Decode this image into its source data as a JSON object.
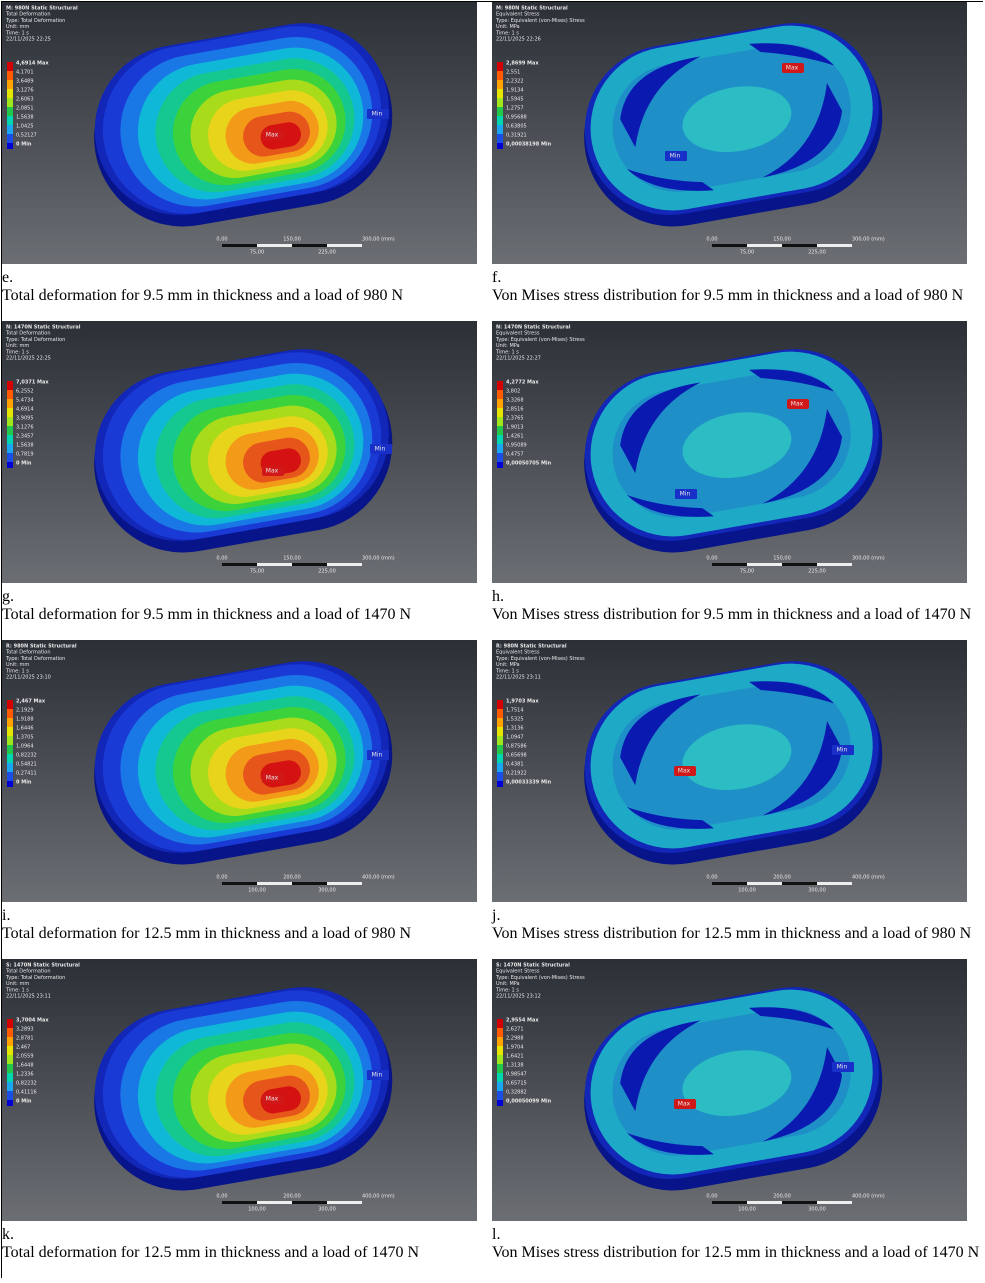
{
  "panels": [
    {
      "letter": "e.",
      "caption": "Total deformation for 9.5 mm in thickness and a load of 980 N",
      "kind": "deformation",
      "header": [
        "M: 980N Static Structural",
        "Total Deformation",
        "Type: Total Deformation",
        "Unit: mm",
        "Time: 1 s",
        "22/11/2025 22:25"
      ],
      "legend": [
        "4,6914 Max",
        "4,1701",
        "3,6489",
        "3,1276",
        "2,6063",
        "2,0851",
        "1,5638",
        "1,0425",
        "0,52127",
        "0 Min"
      ],
      "max": "Max",
      "min": "Min",
      "scale_top": [
        "0,00",
        "150,00",
        "300,00 (mm)"
      ],
      "scale_bottom": [
        "75,00",
        "225,00"
      ]
    },
    {
      "letter": "f.",
      "caption": "Von Mises stress distribution for 9.5 mm in thickness and a load of 980 N",
      "kind": "stress",
      "header": [
        "M: 980N Static Structural",
        "Equivalent Stress",
        "Type: Equivalent (von-Mises) Stress",
        "Unit: MPa",
        "Time: 1 s",
        "22/11/2025 22:26"
      ],
      "legend": [
        "2,8699 Max",
        "2,551",
        "2,2322",
        "1,9134",
        "1,5945",
        "1,2757",
        "0,95688",
        "0,63805",
        "0,31921",
        "0,00038198 Min"
      ],
      "max": "Max",
      "min": "Min",
      "scale_top": [
        "0,00",
        "150,00",
        "300,00 (mm)"
      ],
      "scale_bottom": [
        "75,00",
        "225,00"
      ]
    },
    {
      "letter": "g.",
      "caption": "Total deformation for 9.5 mm in thickness and a load of 1470 N",
      "kind": "deformation",
      "header": [
        "N: 1470N Static Structural",
        "Total Deformation",
        "Type: Total Deformation",
        "Unit: mm",
        "Time: 1 s",
        "22/11/2025 22:25"
      ],
      "legend": [
        "7,0371 Max",
        "6,2552",
        "5,4734",
        "4,6914",
        "3,9095",
        "3,1276",
        "2,3457",
        "1,5638",
        "0,7819",
        "0 Min"
      ],
      "max": "Max",
      "min": "Min",
      "scale_top": [
        "0,00",
        "150,00",
        "300,00 (mm)"
      ],
      "scale_bottom": [
        "75,00",
        "225,00"
      ]
    },
    {
      "letter": "h.",
      "caption": "Von Mises stress distribution for 9.5 mm in thickness and a load of 1470 N",
      "kind": "stress",
      "header": [
        "N: 1470N Static Structural",
        "Equivalent Stress",
        "Type: Equivalent (von-Mises) Stress",
        "Unit: MPa",
        "Time: 1 s",
        "22/11/2025 22:27"
      ],
      "legend": [
        "4,2772 Max",
        "3,802",
        "3,3268",
        "2,8516",
        "2,3765",
        "1,9013",
        "1,4261",
        "0,95089",
        "0,4757",
        "0,00050705 Min"
      ],
      "max": "Max",
      "min": "Min",
      "scale_top": [
        "0,00",
        "150,00",
        "300,00 (mm)"
      ],
      "scale_bottom": [
        "75,00",
        "225,00"
      ]
    },
    {
      "letter": "i.",
      "caption": "Total deformation for 12.5 mm in thickness and a load of 980 N",
      "kind": "deformation",
      "header": [
        "R: 980N Static Structural",
        "Total Deformation",
        "Type: Total Deformation",
        "Unit: mm",
        "Time: 1 s",
        "22/11/2025 23:10"
      ],
      "legend": [
        "2,467 Max",
        "2,1929",
        "1,9188",
        "1,6446",
        "1,3705",
        "1,0964",
        "0,82232",
        "0,54821",
        "0,27411",
        "0 Min"
      ],
      "max": "Max",
      "min": "Min",
      "scale_top": [
        "0,00",
        "200,00",
        "400,00 (mm)"
      ],
      "scale_bottom": [
        "100,00",
        "300,00"
      ]
    },
    {
      "letter": "j.",
      "caption": "Von Mises stress distribution for 12.5 mm in thickness and a load of 980 N",
      "kind": "stress",
      "header": [
        "R: 980N Static Structural",
        "Equivalent Stress",
        "Type: Equivalent (von-Mises) Stress",
        "Unit: MPa",
        "Time: 1 s",
        "22/11/2025 23:11"
      ],
      "legend": [
        "1,9703 Max",
        "1,7514",
        "1,5325",
        "1,3136",
        "1,0947",
        "0,87586",
        "0,65698",
        "0,4381",
        "0,21922",
        "0,00033339 Min"
      ],
      "max": "Max",
      "min": "Min",
      "scale_top": [
        "0,00",
        "200,00",
        "400,00 (mm)"
      ],
      "scale_bottom": [
        "100,00",
        "300,00"
      ]
    },
    {
      "letter": "k.",
      "caption": "Total deformation for 12.5 mm in thickness and a load of 1470 N",
      "kind": "deformation",
      "header": [
        "S: 1470N Static Structural",
        "Total Deformation",
        "Type: Total Deformation",
        "Unit: mm",
        "Time: 1 s",
        "22/11/2025 23:11"
      ],
      "legend": [
        "3,7004 Max",
        "3,2893",
        "2,8781",
        "2,467",
        "2,0559",
        "1,6448",
        "1,2336",
        "0,82232",
        "0,41116",
        "0 Min"
      ],
      "max": "Max",
      "min": "Min",
      "scale_top": [
        "0,00",
        "200,00",
        "400,00 (mm)"
      ],
      "scale_bottom": [
        "100,00",
        "300,00"
      ]
    },
    {
      "letter": "l.",
      "caption": "Von Mises stress distribution for 12.5 mm in thickness and a load of 1470 N",
      "kind": "stress",
      "header": [
        "S: 1470N Static Structural",
        "Equivalent Stress",
        "Type: Equivalent (von-Mises) Stress",
        "Unit: MPa",
        "Time: 1 s",
        "22/11/2025 23:12"
      ],
      "legend": [
        "2,9554 Max",
        "2,6271",
        "2,2988",
        "1,9704",
        "1,6421",
        "1,3138",
        "0,98547",
        "0,65715",
        "0,32882",
        "0,00050099 Min"
      ],
      "max": "Max",
      "min": "Min",
      "scale_top": [
        "0,00",
        "200,00",
        "400,00 (mm)"
      ],
      "scale_bottom": [
        "100,00",
        "300,00"
      ]
    }
  ]
}
